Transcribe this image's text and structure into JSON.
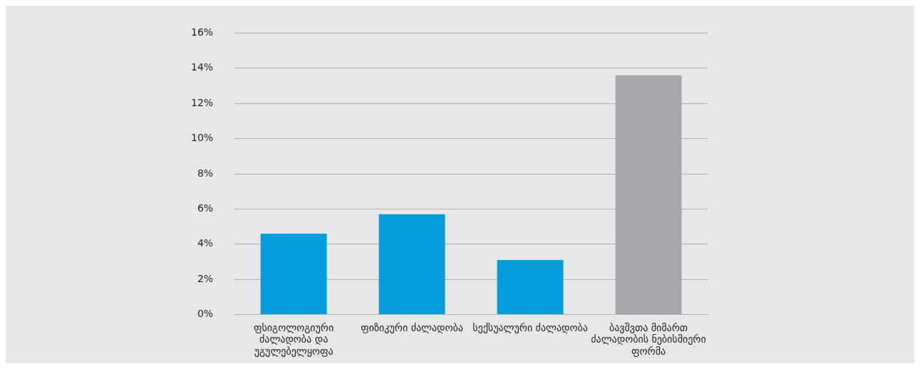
{
  "chart_data": {
    "type": "bar",
    "categories": [
      "ფსიგოლოგიური ძალადობა და უგულებელყოფა",
      "ფიზიკური ძალადობა",
      "სექსუალური ძალადობა",
      "ბავშვთა მიმართ ძალადობის ნებისმიერი ფორმა"
    ],
    "values": [
      4.6,
      5.7,
      3.1,
      13.6
    ],
    "colors": [
      "#059ddb",
      "#059ddb",
      "#059ddb",
      "#a7a8ab"
    ],
    "ylim": [
      0,
      16
    ],
    "yticks": [
      {
        "value": 0,
        "label": "0%"
      },
      {
        "value": 2,
        "label": "2%"
      },
      {
        "value": 4,
        "label": "4%"
      },
      {
        "value": 6,
        "label": "6%"
      },
      {
        "value": 8,
        "label": "8%"
      },
      {
        "value": 10,
        "label": "10%"
      },
      {
        "value": 12,
        "label": "12%"
      },
      {
        "value": 14,
        "label": "14%"
      },
      {
        "value": 16,
        "label": "16%"
      }
    ],
    "grid": "y",
    "legend": false
  }
}
